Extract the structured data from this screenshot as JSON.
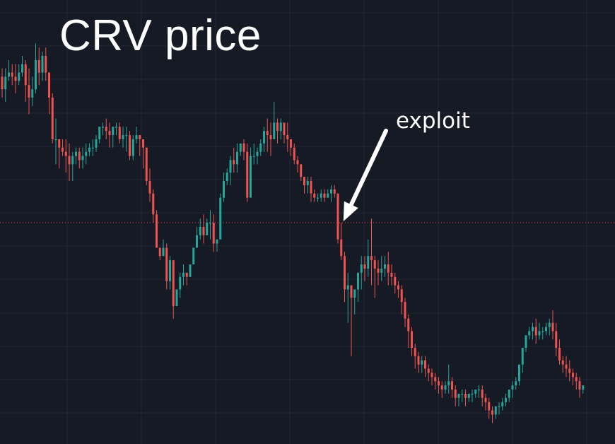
{
  "chart_data": {
    "type": "candlestick",
    "title": "CRV price",
    "xlabel": "",
    "ylabel": "",
    "grid": true,
    "ylim": [
      0,
      100
    ],
    "annotations": [
      {
        "text": "exploit",
        "at_index": 101
      }
    ],
    "price_line": 50,
    "colors": {
      "up": "#26a69a",
      "down": "#ef5350",
      "background": "#161a25",
      "grid": "#232734",
      "price_line": "#ef5350",
      "text": "#ffffff"
    },
    "candles": [
      [
        85,
        87,
        82,
        80
      ],
      [
        82,
        87,
        85,
        79
      ],
      [
        85,
        89,
        86,
        84
      ],
      [
        86,
        88,
        85,
        83
      ],
      [
        85,
        88,
        84,
        81
      ],
      [
        84,
        88,
        86,
        83
      ],
      [
        86,
        90,
        88,
        85
      ],
      [
        88,
        89,
        83,
        79
      ],
      [
        83,
        87,
        80,
        76
      ],
      [
        80,
        85,
        82,
        78
      ],
      [
        82,
        93,
        89,
        81
      ],
      [
        89,
        92,
        86,
        83
      ],
      [
        86,
        91,
        90,
        84
      ],
      [
        90,
        92,
        86,
        84
      ],
      [
        86,
        86,
        80,
        76
      ],
      [
        80,
        81,
        70,
        69
      ],
      [
        70,
        75,
        70,
        64
      ],
      [
        70,
        70,
        68,
        63
      ],
      [
        68,
        70,
        67,
        66
      ],
      [
        67,
        70,
        66,
        62
      ],
      [
        66,
        69,
        64,
        60
      ],
      [
        64,
        67,
        66,
        60
      ],
      [
        66,
        68,
        67,
        64
      ],
      [
        67,
        68,
        65,
        63
      ],
      [
        65,
        68,
        66,
        63
      ],
      [
        66,
        69,
        67,
        64
      ],
      [
        67,
        69,
        68,
        66
      ],
      [
        68,
        70,
        68,
        66
      ],
      [
        68,
        71,
        70,
        67
      ],
      [
        70,
        73,
        73,
        69
      ],
      [
        73,
        74,
        73,
        71
      ],
      [
        73,
        75,
        72,
        70
      ],
      [
        72,
        74,
        71,
        68
      ],
      [
        71,
        73,
        73,
        68
      ],
      [
        73,
        74,
        73,
        71
      ],
      [
        73,
        74,
        70,
        69
      ],
      [
        70,
        73,
        71,
        68
      ],
      [
        71,
        73,
        71,
        67
      ],
      [
        71,
        72,
        66,
        65
      ],
      [
        66,
        71,
        70,
        65
      ],
      [
        70,
        73,
        71,
        69
      ],
      [
        71,
        71,
        70,
        66
      ],
      [
        70,
        70,
        68,
        63
      ],
      [
        68,
        68,
        60,
        59
      ],
      [
        60,
        63,
        57,
        55
      ],
      [
        57,
        58,
        52,
        50
      ],
      [
        52,
        53,
        44,
        44
      ],
      [
        44,
        44,
        42,
        41
      ],
      [
        42,
        46,
        44,
        42
      ],
      [
        44,
        45,
        36,
        34
      ],
      [
        36,
        42,
        41,
        34
      ],
      [
        41,
        41,
        30,
        27
      ],
      [
        30,
        33,
        34,
        30
      ],
      [
        34,
        38,
        37,
        32
      ],
      [
        37,
        40,
        38,
        35
      ],
      [
        38,
        38,
        37,
        35
      ],
      [
        37,
        40,
        40,
        37
      ],
      [
        40,
        44,
        44,
        41
      ],
      [
        44,
        49,
        47,
        44
      ],
      [
        47,
        51,
        49,
        46
      ],
      [
        49,
        52,
        47,
        45
      ],
      [
        47,
        51,
        50,
        47
      ],
      [
        50,
        53,
        50,
        46
      ],
      [
        50,
        52,
        45,
        43
      ],
      [
        45,
        46,
        46,
        43
      ],
      [
        46,
        57,
        56,
        48
      ],
      [
        56,
        62,
        60,
        55
      ],
      [
        60,
        63,
        62,
        59
      ],
      [
        62,
        66,
        65,
        59
      ],
      [
        65,
        68,
        64,
        62
      ],
      [
        64,
        69,
        67,
        62
      ],
      [
        67,
        69,
        69,
        66
      ],
      [
        69,
        70,
        67,
        65
      ],
      [
        67,
        69,
        56,
        55
      ],
      [
        56,
        68,
        66,
        56
      ],
      [
        66,
        69,
        66,
        64
      ],
      [
        66,
        68,
        67,
        64
      ],
      [
        67,
        70,
        69,
        66
      ],
      [
        69,
        73,
        72,
        67
      ],
      [
        72,
        75,
        71,
        67
      ],
      [
        71,
        74,
        70,
        66
      ],
      [
        70,
        79,
        74,
        70
      ],
      [
        74,
        75,
        72,
        69
      ],
      [
        72,
        75,
        74,
        70
      ],
      [
        74,
        73,
        71,
        69
      ],
      [
        71,
        74,
        70,
        67
      ],
      [
        70,
        69,
        68,
        66
      ],
      [
        68,
        69,
        65,
        64
      ],
      [
        65,
        66,
        64,
        62
      ],
      [
        64,
        63,
        61,
        60
      ],
      [
        61,
        61,
        59,
        57
      ],
      [
        59,
        61,
        60,
        57
      ],
      [
        60,
        61,
        57,
        55
      ],
      [
        57,
        58,
        56,
        55
      ],
      [
        56,
        57,
        56,
        55
      ],
      [
        56,
        58,
        57,
        55
      ],
      [
        57,
        58,
        56,
        55
      ],
      [
        56,
        58,
        57,
        56
      ],
      [
        57,
        59,
        58,
        55
      ],
      [
        58,
        59,
        57,
        56
      ],
      [
        57,
        52,
        46,
        45
      ],
      [
        46,
        50,
        42,
        41
      ],
      [
        42,
        43,
        34,
        31
      ],
      [
        34,
        38,
        35,
        26
      ],
      [
        35,
        33,
        32,
        18
      ],
      [
        32,
        33,
        34,
        28
      ],
      [
        34,
        38,
        38,
        31
      ],
      [
        38,
        42,
        40,
        34
      ],
      [
        40,
        42,
        39,
        36
      ],
      [
        39,
        46,
        42,
        37
      ],
      [
        42,
        51,
        41,
        35
      ],
      [
        41,
        42,
        39,
        32
      ],
      [
        39,
        41,
        38,
        35
      ],
      [
        38,
        42,
        39,
        36
      ],
      [
        39,
        42,
        40,
        37
      ],
      [
        40,
        43,
        38,
        35
      ],
      [
        38,
        40,
        37,
        35
      ],
      [
        37,
        38,
        35,
        33
      ],
      [
        35,
        36,
        34,
        32
      ],
      [
        34,
        35,
        31,
        28
      ],
      [
        31,
        32,
        27,
        25
      ],
      [
        27,
        28,
        24,
        20
      ],
      [
        24,
        25,
        20,
        18
      ],
      [
        20,
        21,
        18,
        15
      ],
      [
        18,
        19,
        16,
        14
      ],
      [
        16,
        18,
        17,
        14
      ],
      [
        17,
        18,
        15,
        13
      ],
      [
        15,
        16,
        14,
        12
      ],
      [
        14,
        15,
        13,
        11
      ],
      [
        13,
        14,
        12,
        10
      ],
      [
        12,
        13,
        11,
        9
      ],
      [
        11,
        12,
        10,
        8
      ],
      [
        10,
        12,
        11,
        9
      ],
      [
        11,
        16,
        12,
        9
      ],
      [
        12,
        13,
        10,
        8
      ],
      [
        10,
        11,
        8,
        6
      ],
      [
        8,
        9,
        9,
        6
      ],
      [
        9,
        10,
        9,
        7
      ],
      [
        9,
        10,
        8,
        6
      ],
      [
        8,
        9,
        9,
        7
      ],
      [
        9,
        10,
        9,
        7
      ],
      [
        9,
        10,
        10,
        8
      ],
      [
        10,
        11,
        10,
        8
      ],
      [
        10,
        11,
        8,
        6
      ],
      [
        8,
        9,
        7,
        5
      ],
      [
        7,
        8,
        5,
        3
      ],
      [
        5,
        6,
        4,
        2
      ],
      [
        4,
        5,
        6,
        3
      ],
      [
        6,
        7,
        6,
        4
      ],
      [
        6,
        8,
        7,
        5
      ],
      [
        7,
        9,
        8,
        6
      ],
      [
        8,
        9,
        10,
        7
      ],
      [
        10,
        12,
        11,
        8
      ],
      [
        11,
        13,
        12,
        10
      ],
      [
        12,
        14,
        16,
        11
      ],
      [
        16,
        18,
        20,
        14
      ],
      [
        20,
        22,
        23,
        19
      ],
      [
        23,
        25,
        24,
        22
      ],
      [
        24,
        26,
        25,
        22
      ],
      [
        25,
        27,
        23,
        21
      ],
      [
        23,
        26,
        24,
        22
      ],
      [
        24,
        25,
        24,
        22
      ],
      [
        24,
        26,
        25,
        23
      ],
      [
        25,
        27,
        26,
        23
      ],
      [
        26,
        29,
        24,
        22
      ],
      [
        24,
        26,
        20,
        18
      ],
      [
        20,
        22,
        17,
        16
      ],
      [
        17,
        18,
        16,
        14
      ],
      [
        16,
        18,
        15,
        13
      ],
      [
        15,
        17,
        14,
        12
      ],
      [
        14,
        15,
        13,
        11
      ],
      [
        13,
        14,
        12,
        10
      ],
      [
        12,
        13,
        10,
        8
      ],
      [
        10,
        11,
        11,
        9
      ]
    ]
  }
}
